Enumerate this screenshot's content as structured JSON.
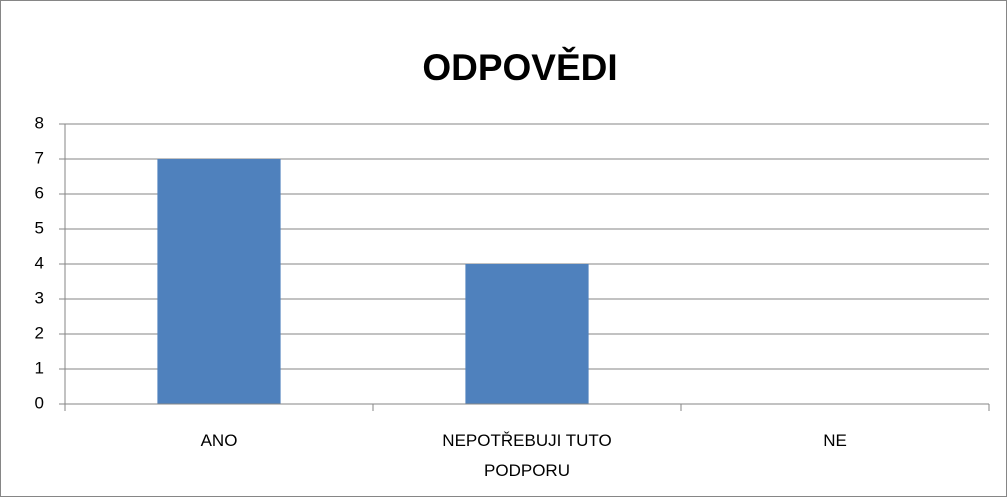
{
  "chart_data": {
    "type": "bar",
    "title": "ODPOVĚDI",
    "categories": [
      "ANO",
      "NEPOTŘEBUJI TUTO PODPORU",
      "NE"
    ],
    "values": [
      7,
      4,
      0
    ],
    "color": "#4f81bd",
    "ylim": [
      0,
      8
    ],
    "yticks": [
      0,
      1,
      2,
      3,
      4,
      5,
      6,
      7,
      8
    ],
    "grid": true
  }
}
